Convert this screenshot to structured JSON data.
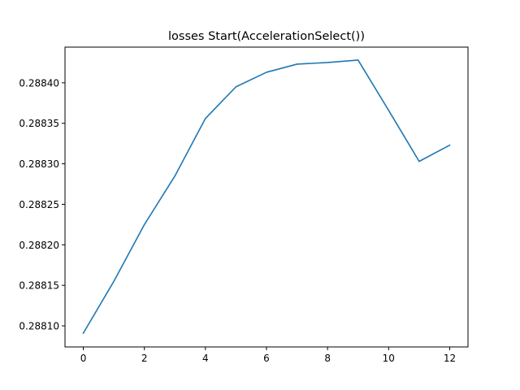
{
  "chart_data": {
    "type": "line",
    "title": "losses Start(AccelerationSelect())",
    "xlabel": "",
    "ylabel": "",
    "xlim": [
      -0.6,
      12.6
    ],
    "ylim": [
      0.288074,
      0.288444
    ],
    "x_ticks": [
      0,
      2,
      4,
      6,
      8,
      10,
      12
    ],
    "x_tick_labels": [
      "0",
      "2",
      "4",
      "6",
      "8",
      "10",
      "12"
    ],
    "y_ticks": [
      0.2881,
      0.28815,
      0.2882,
      0.28825,
      0.2883,
      0.28835,
      0.2884
    ],
    "y_tick_labels": [
      "0.28810",
      "0.28815",
      "0.28820",
      "0.28825",
      "0.28830",
      "0.28835",
      "0.28840"
    ],
    "grid": false,
    "series": [
      {
        "color": "#1f77b4",
        "x": [
          0,
          1,
          2,
          3,
          4,
          5,
          6,
          7,
          8,
          9,
          10,
          11,
          12
        ],
        "values": [
          0.288091,
          0.288155,
          0.288225,
          0.288285,
          0.288356,
          0.288395,
          0.288413,
          0.288423,
          0.288425,
          0.288428,
          0.288366,
          0.288303,
          0.288323
        ]
      }
    ]
  }
}
